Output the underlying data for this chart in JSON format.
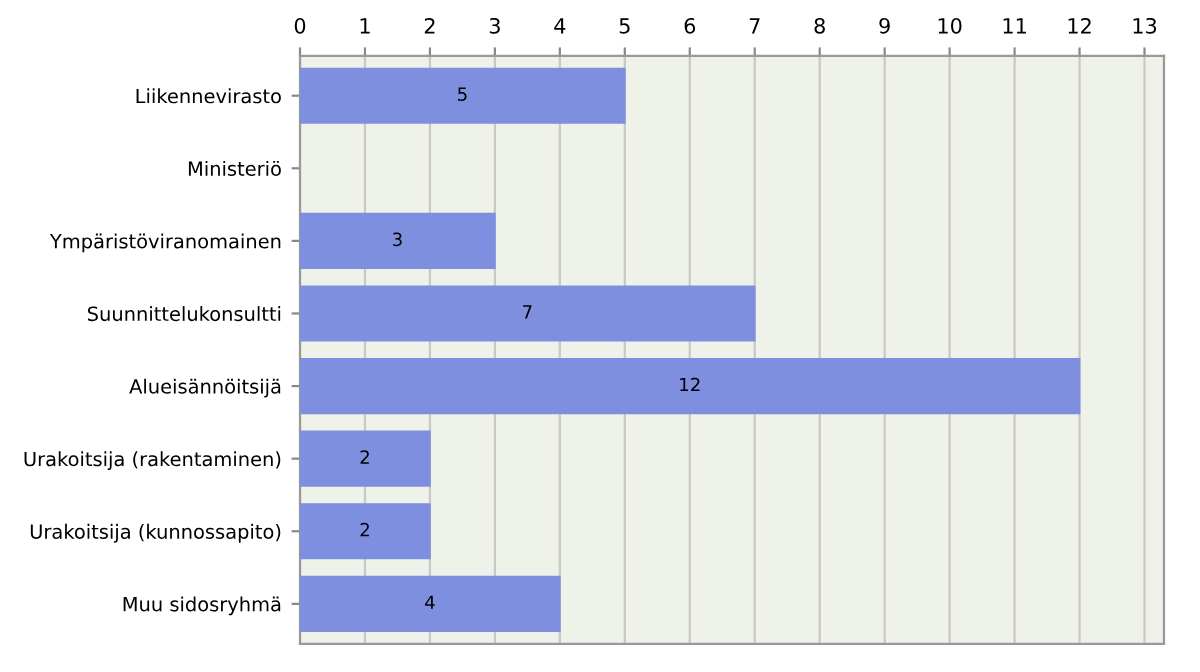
{
  "chart_data": {
    "type": "bar",
    "orientation": "horizontal",
    "categories": [
      "Liikennevirasto",
      "Ministeriö",
      "Ympäristöviranomainen",
      "Suunnittelukonsultti",
      "Alueisännöitsijä",
      "Urakoitsija (rakentaminen)",
      "Urakoitsija (kunnossapito)",
      "Muu sidosryhmä"
    ],
    "values": [
      5,
      0,
      3,
      7,
      12,
      2,
      2,
      4
    ],
    "value_labels": [
      "5",
      null,
      "3",
      "7",
      "12",
      "2",
      "2",
      "4"
    ],
    "color": "#7f8fdf",
    "xlim": [
      0,
      13.3
    ],
    "xticks": [
      0,
      1,
      2,
      3,
      4,
      5,
      6,
      7,
      8,
      9,
      10,
      11,
      12,
      13
    ],
    "grid": "x"
  }
}
